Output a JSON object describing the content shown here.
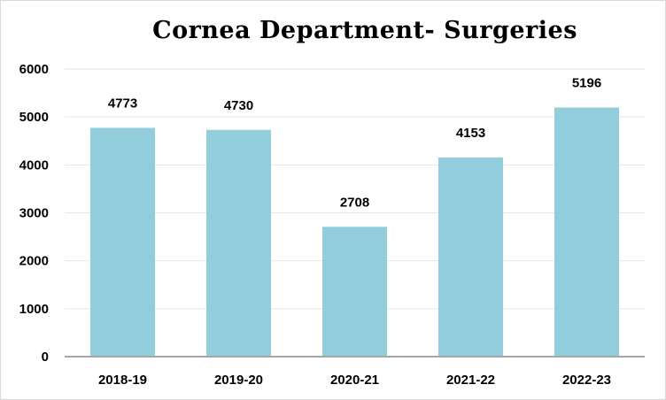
{
  "chart_data": {
    "type": "bar",
    "title": "Cornea Department- Surgeries",
    "xlabel": "",
    "ylabel": "",
    "categories": [
      "2018-19",
      "2019-20",
      "2020-21",
      "2021-22",
      "2022-23"
    ],
    "values": [
      4773,
      4730,
      2708,
      4153,
      5196
    ],
    "data_labels": [
      "4773",
      "4730",
      "2708",
      "4153",
      "5196"
    ],
    "ylim": [
      0,
      6000
    ],
    "yticks": [
      0,
      1000,
      2000,
      3000,
      4000,
      5000,
      6000
    ],
    "ytick_labels": [
      "0",
      "1000",
      "2000",
      "3000",
      "4000",
      "5000",
      "6000"
    ],
    "grid": true,
    "legend": "none",
    "bar_color": "#92cddc",
    "axis_color": "#a6a6a6",
    "grid_color": "#e6e6e6"
  }
}
